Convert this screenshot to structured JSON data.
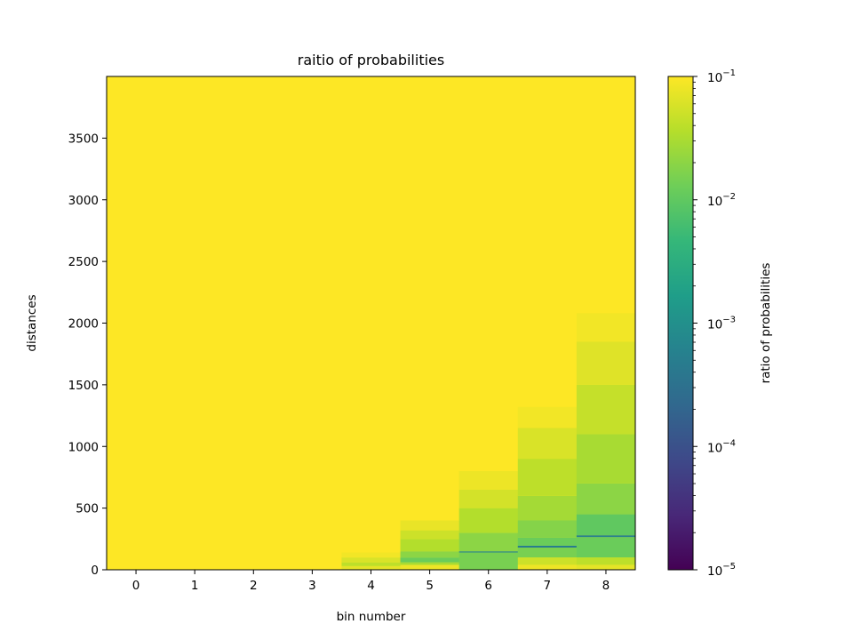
{
  "chart_data": {
    "type": "heatmap",
    "title": "raitio of probabilities",
    "xlabel": "bin number",
    "ylabel": "distances",
    "x_categories": [
      "0",
      "1",
      "2",
      "3",
      "4",
      "5",
      "6",
      "7",
      "8"
    ],
    "ylim": [
      0,
      4000
    ],
    "y_ticks": [
      0,
      500,
      1000,
      1500,
      2000,
      2500,
      3000,
      3500
    ],
    "y_tick_labels": [
      "0",
      "500",
      "1000",
      "1500",
      "2000",
      "2500",
      "3000",
      "3500"
    ],
    "colorbar": {
      "label": "ratio of probabilities",
      "scale": "log",
      "colormap": "viridis",
      "range": [
        1e-05,
        0.1
      ],
      "ticks": [
        {
          "value": 0.1,
          "base": "10",
          "exp": "−1"
        },
        {
          "value": 0.01,
          "base": "10",
          "exp": "−2"
        },
        {
          "value": 0.001,
          "base": "10",
          "exp": "−3"
        },
        {
          "value": 0.0001,
          "base": "10",
          "exp": "−4"
        },
        {
          "value": 1e-05,
          "base": "10",
          "exp": "−5"
        }
      ]
    },
    "background_value": 0.1,
    "columns": [
      {
        "bin": 0,
        "segments": []
      },
      {
        "bin": 1,
        "segments": []
      },
      {
        "bin": 2,
        "segments": []
      },
      {
        "bin": 3,
        "segments": []
      },
      {
        "bin": 4,
        "segments": [
          {
            "from": 0,
            "to": 30,
            "value": 0.07
          },
          {
            "from": 30,
            "to": 60,
            "value": 0.04
          },
          {
            "from": 60,
            "to": 100,
            "value": 0.06
          },
          {
            "from": 100,
            "to": 140,
            "value": 0.085
          }
        ]
      },
      {
        "bin": 5,
        "segments": [
          {
            "from": 0,
            "to": 40,
            "value": 0.08
          },
          {
            "from": 40,
            "to": 60,
            "value": 0.03
          },
          {
            "from": 60,
            "to": 100,
            "value": 0.012
          },
          {
            "from": 100,
            "to": 150,
            "value": 0.02
          },
          {
            "from": 150,
            "to": 250,
            "value": 0.035
          },
          {
            "from": 250,
            "to": 320,
            "value": 0.05
          },
          {
            "from": 320,
            "to": 400,
            "value": 0.075
          }
        ]
      },
      {
        "bin": 6,
        "segments": [
          {
            "from": 0,
            "to": 140,
            "value": 0.015
          },
          {
            "from": 140,
            "to": 150,
            "value": 0.0008
          },
          {
            "from": 150,
            "to": 300,
            "value": 0.02
          },
          {
            "from": 300,
            "to": 500,
            "value": 0.035
          },
          {
            "from": 500,
            "to": 650,
            "value": 0.055
          },
          {
            "from": 650,
            "to": 800,
            "value": 0.08
          }
        ]
      },
      {
        "bin": 7,
        "segments": [
          {
            "from": 0,
            "to": 40,
            "value": 0.08
          },
          {
            "from": 40,
            "to": 100,
            "value": 0.05
          },
          {
            "from": 100,
            "to": 180,
            "value": 0.015
          },
          {
            "from": 180,
            "to": 195,
            "value": 0.0005
          },
          {
            "from": 195,
            "to": 260,
            "value": 0.012
          },
          {
            "from": 260,
            "to": 400,
            "value": 0.018
          },
          {
            "from": 400,
            "to": 600,
            "value": 0.028
          },
          {
            "from": 600,
            "to": 900,
            "value": 0.04
          },
          {
            "from": 900,
            "to": 1150,
            "value": 0.06
          },
          {
            "from": 1150,
            "to": 1320,
            "value": 0.085
          }
        ]
      },
      {
        "bin": 8,
        "segments": [
          {
            "from": 0,
            "to": 40,
            "value": 0.07
          },
          {
            "from": 40,
            "to": 100,
            "value": 0.04
          },
          {
            "from": 100,
            "to": 265,
            "value": 0.012
          },
          {
            "from": 265,
            "to": 280,
            "value": 0.0006
          },
          {
            "from": 280,
            "to": 450,
            "value": 0.01
          },
          {
            "from": 450,
            "to": 700,
            "value": 0.02
          },
          {
            "from": 700,
            "to": 1100,
            "value": 0.03
          },
          {
            "from": 1100,
            "to": 1500,
            "value": 0.045
          },
          {
            "from": 1500,
            "to": 1850,
            "value": 0.065
          },
          {
            "from": 1850,
            "to": 2080,
            "value": 0.085
          }
        ]
      }
    ]
  }
}
